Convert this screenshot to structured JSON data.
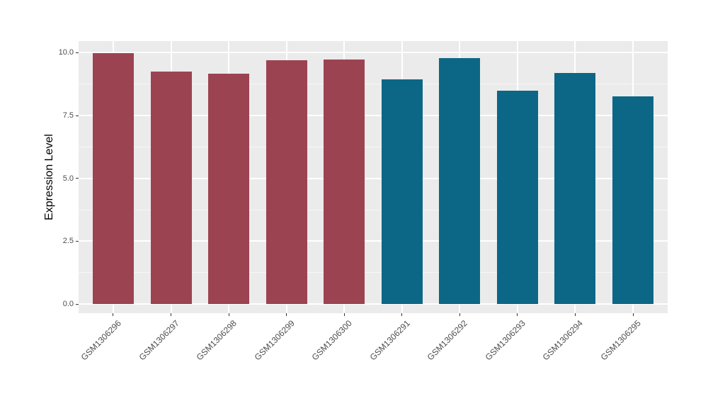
{
  "chart_data": {
    "type": "bar",
    "title": "",
    "xlabel": "",
    "ylabel": "Expression Level",
    "categories": [
      "GSM1306296",
      "GSM1306297",
      "GSM1306298",
      "GSM1306299",
      "GSM1306300",
      "GSM1306291",
      "GSM1306292",
      "GSM1306293",
      "GSM1306294",
      "GSM1306295"
    ],
    "values": [
      9.97,
      9.25,
      9.17,
      9.7,
      9.72,
      8.95,
      9.79,
      8.48,
      9.18,
      8.27
    ],
    "groups": [
      "group1",
      "group1",
      "group1",
      "group1",
      "group1",
      "group2",
      "group2",
      "group2",
      "group2",
      "group2"
    ],
    "group_colors": {
      "group1": "#9c4351",
      "group2": "#0c6786"
    },
    "ylim": [
      -0.36,
      10.46
    ],
    "yticks": [
      0,
      2.5,
      5,
      7.5,
      10
    ],
    "ytick_labels": [
      "0.0",
      "2.5",
      "5.0",
      "7.5",
      "10.0"
    ],
    "yminor_ticks": [
      1.25,
      3.75,
      6.25,
      8.75
    ],
    "grid": "on",
    "legend": "none",
    "panel_background": "#ebebeb",
    "grid_major_color": "#ffffff",
    "grid_minor_color": "#f6f6f6",
    "axis_text_color": "#4d4d4d",
    "axis_title_color": "#000000"
  }
}
